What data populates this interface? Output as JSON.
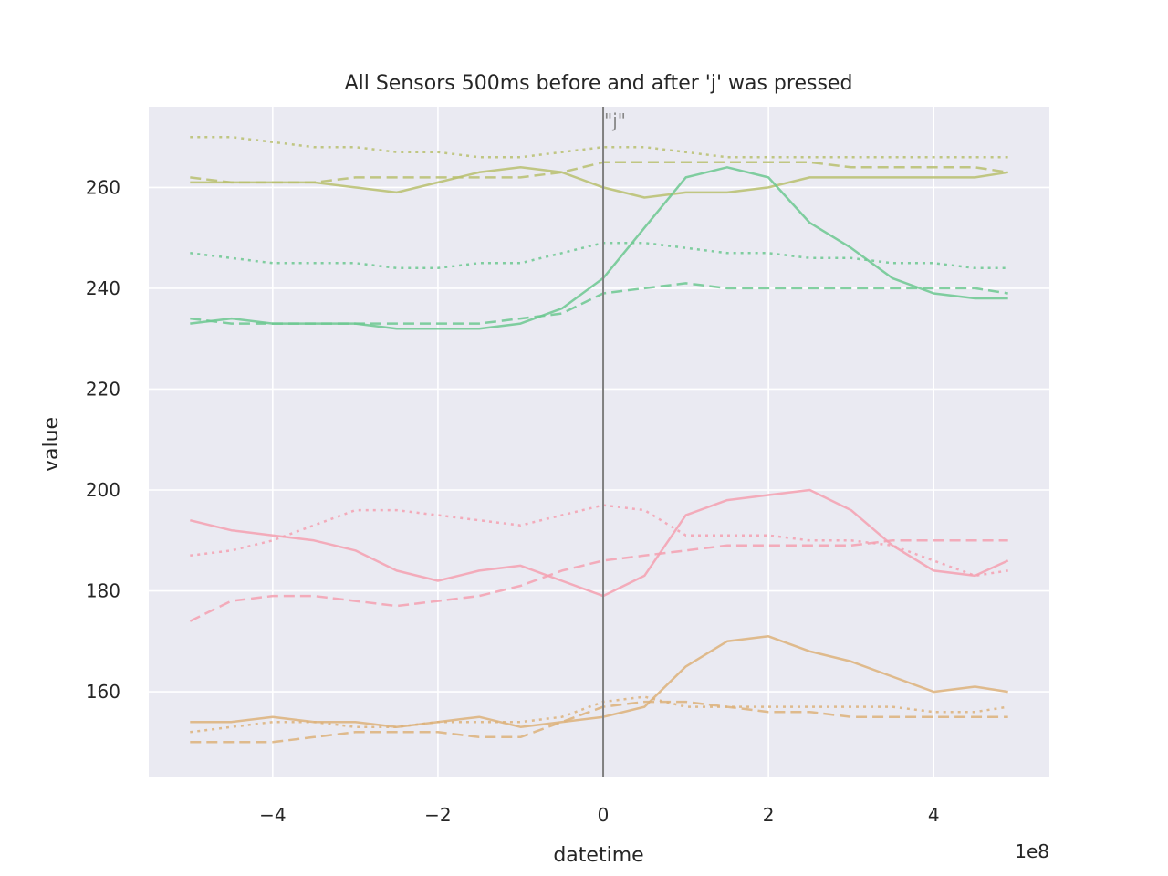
{
  "chart_data": {
    "type": "line",
    "title": "All Sensors 500ms before and after 'j' was pressed",
    "xlabel": "datetime",
    "ylabel": "value",
    "x_offset_label": "1e8",
    "xlim": [
      -5.5,
      5.4
    ],
    "ylim": [
      143,
      276
    ],
    "xticks": [
      -4,
      -2,
      0,
      2,
      4
    ],
    "xtick_labels": [
      "−4",
      "−2",
      "0",
      "2",
      "4"
    ],
    "yticks": [
      160,
      180,
      200,
      220,
      240,
      260
    ],
    "ytick_labels": [
      "160",
      "180",
      "200",
      "220",
      "240",
      "260"
    ],
    "grid": true,
    "background": "#eaeaf2",
    "event": {
      "x": 0,
      "label": "\"j\""
    },
    "x": [
      -5.0,
      -4.5,
      -4.0,
      -3.5,
      -3.0,
      -2.5,
      -2.0,
      -1.5,
      -1.0,
      -0.5,
      0.0,
      0.5,
      1.0,
      1.5,
      2.0,
      2.5,
      3.0,
      3.5,
      4.0,
      4.5,
      4.9
    ],
    "series": [
      {
        "color": "#b8bf6f",
        "dash": "solid",
        "values": [
          261,
          261,
          261,
          261,
          260,
          259,
          261,
          263,
          264,
          263,
          260,
          258,
          259,
          259,
          260,
          262,
          262,
          262,
          262,
          262,
          263
        ]
      },
      {
        "color": "#b8bf6f",
        "dash": "dashed",
        "values": [
          262,
          261,
          261,
          261,
          262,
          262,
          262,
          262,
          262,
          263,
          265,
          265,
          265,
          265,
          265,
          265,
          264,
          264,
          264,
          264,
          263
        ]
      },
      {
        "color": "#b8bf6f",
        "dash": "dotted",
        "values": [
          270,
          270,
          269,
          268,
          268,
          267,
          267,
          266,
          266,
          267,
          268,
          268,
          267,
          266,
          266,
          266,
          266,
          266,
          266,
          266,
          266
        ]
      },
      {
        "color": "#6cc891",
        "dash": "solid",
        "values": [
          233,
          234,
          233,
          233,
          233,
          232,
          232,
          232,
          233,
          236,
          242,
          252,
          262,
          264,
          262,
          253,
          248,
          242,
          239,
          238,
          238
        ]
      },
      {
        "color": "#6cc891",
        "dash": "dashed",
        "values": [
          234,
          233,
          233,
          233,
          233,
          233,
          233,
          233,
          234,
          235,
          239,
          240,
          241,
          240,
          240,
          240,
          240,
          240,
          240,
          240,
          239
        ]
      },
      {
        "color": "#6cc891",
        "dash": "dotted",
        "values": [
          247,
          246,
          245,
          245,
          245,
          244,
          244,
          245,
          245,
          247,
          249,
          249,
          248,
          247,
          247,
          246,
          246,
          245,
          245,
          244,
          244
        ]
      },
      {
        "color": "#f4a0b0",
        "dash": "solid",
        "values": [
          194,
          192,
          191,
          190,
          188,
          184,
          182,
          184,
          185,
          182,
          179,
          183,
          195,
          198,
          199,
          200,
          196,
          189,
          184,
          183,
          186
        ]
      },
      {
        "color": "#f4a0b0",
        "dash": "dashed",
        "values": [
          174,
          178,
          179,
          179,
          178,
          177,
          178,
          179,
          181,
          184,
          186,
          187,
          188,
          189,
          189,
          189,
          189,
          190,
          190,
          190,
          190
        ]
      },
      {
        "color": "#f4a0b0",
        "dash": "dotted",
        "values": [
          187,
          188,
          190,
          193,
          196,
          196,
          195,
          194,
          193,
          195,
          197,
          196,
          191,
          191,
          191,
          190,
          190,
          189,
          186,
          183,
          184
        ]
      },
      {
        "color": "#ddb27a",
        "dash": "solid",
        "values": [
          154,
          154,
          155,
          154,
          154,
          153,
          154,
          155,
          153,
          154,
          155,
          157,
          165,
          170,
          171,
          168,
          166,
          163,
          160,
          161,
          160
        ]
      },
      {
        "color": "#ddb27a",
        "dash": "dashed",
        "values": [
          150,
          150,
          150,
          151,
          152,
          152,
          152,
          151,
          151,
          154,
          157,
          158,
          158,
          157,
          156,
          156,
          155,
          155,
          155,
          155,
          155
        ]
      },
      {
        "color": "#ddb27a",
        "dash": "dotted",
        "values": [
          152,
          153,
          154,
          154,
          153,
          153,
          154,
          154,
          154,
          155,
          158,
          159,
          157,
          157,
          157,
          157,
          157,
          157,
          156,
          156,
          157
        ]
      }
    ]
  }
}
